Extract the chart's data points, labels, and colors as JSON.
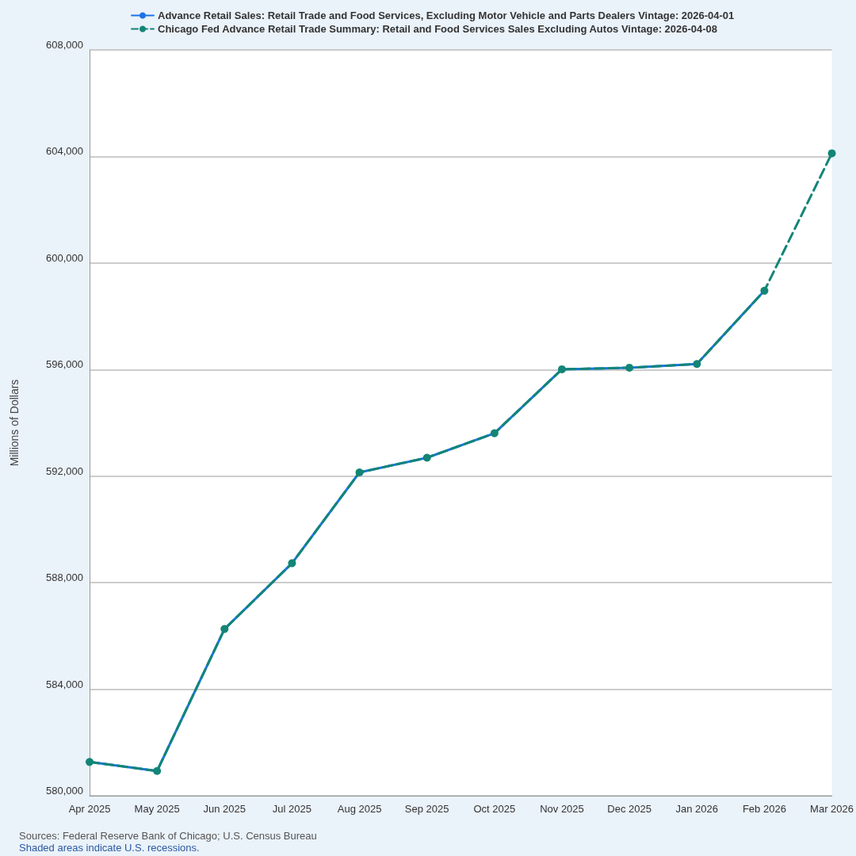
{
  "chart_data": {
    "type": "line",
    "ylabel": "Millions of Dollars",
    "categories": [
      "Apr 2025",
      "May 2025",
      "Jun 2025",
      "Jul 2025",
      "Aug 2025",
      "Sep 2025",
      "Oct 2025",
      "Nov 2025",
      "Dec 2025",
      "Jan 2026",
      "Feb 2026",
      "Mar 2026"
    ],
    "series": [
      {
        "name": "Advance Retail Sales: Retail Trade and Food Services, Excluding Motor Vehicle and Parts Dealers Vintage: 2026-04-01",
        "color": "#1a73e8",
        "line_style": "solid",
        "marker": "none",
        "values": [
          581270,
          580930,
          586260,
          588730,
          592140,
          592690,
          593610,
          596010,
          596070,
          596210,
          598960,
          null
        ]
      },
      {
        "name": "Chicago Fed Advance Retail Trade Summary: Retail and Food Services Sales Excluding Autos Vintage: 2026-04-08",
        "color": "#138577",
        "line_style": "dashed",
        "marker": "circle",
        "values": [
          581270,
          580930,
          586260,
          588730,
          592140,
          592690,
          593610,
          596010,
          596070,
          596210,
          598960,
          604120
        ]
      }
    ],
    "ylim": [
      580000,
      608000
    ],
    "yticks": [
      {
        "value": 580000,
        "label": "580,000"
      },
      {
        "value": 584000,
        "label": "584,000"
      },
      {
        "value": 588000,
        "label": "588,000"
      },
      {
        "value": 592000,
        "label": "592,000"
      },
      {
        "value": 596000,
        "label": "596,000"
      },
      {
        "value": 600000,
        "label": "600,000"
      },
      {
        "value": 604000,
        "label": "604,000"
      },
      {
        "value": 608000,
        "label": "608,000"
      }
    ],
    "grid": "y",
    "legend": "top left",
    "annotations": [
      "Sources: Federal Reserve Bank of Chicago; U.S. Census Bureau",
      "Shaded areas indicate U.S. recessions."
    ]
  }
}
